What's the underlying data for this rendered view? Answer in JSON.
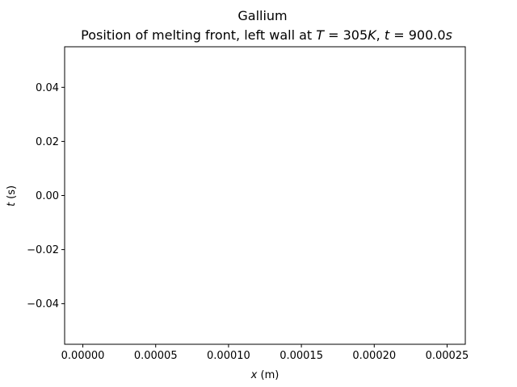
{
  "chart_data": {
    "type": "line",
    "title_line1": "Gallium",
    "title_line2": {
      "prefix": "Position of melting front, left wall at ",
      "var_T": "T",
      "eq1": " = 305",
      "unit_K": "K",
      "comma": ", ",
      "var_t": "t",
      "eq2": " = 900.0",
      "unit_s": "s"
    },
    "xlabel": {
      "var": "x",
      "unit": " (m)"
    },
    "ylabel": {
      "var": "t",
      "unit": " (s)"
    },
    "xlim": [
      -1.25e-05,
      0.0002625
    ],
    "ylim": [
      -0.055,
      0.055
    ],
    "xticks": [
      0,
      5e-05,
      0.0001,
      0.00015,
      0.0002,
      0.00025
    ],
    "xtick_labels": [
      "0.00000",
      "0.00005",
      "0.00010",
      "0.00015",
      "0.00020",
      "0.00025"
    ],
    "yticks": [
      -0.04,
      -0.02,
      0,
      0.02,
      0.04
    ],
    "ytick_labels": [
      "−0.04",
      "−0.02",
      "0.00",
      "0.02",
      "0.04"
    ],
    "grid": false,
    "series": [
      {
        "x": [],
        "y": [],
        "color": "#1f77b4"
      }
    ]
  }
}
